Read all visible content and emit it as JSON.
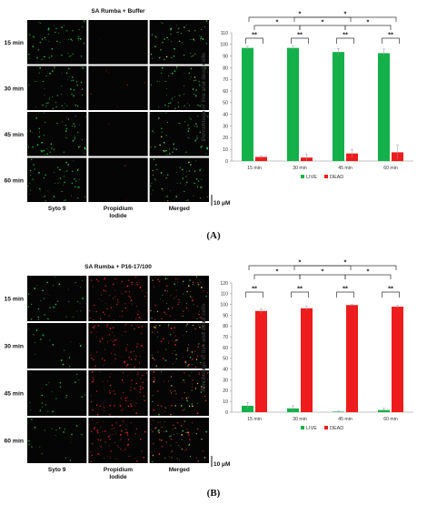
{
  "panels": [
    {
      "letter": "(A)",
      "micrograph": {
        "title": "SA Rumba + Buffer",
        "rows": [
          "15 min",
          "30 min",
          "45 min",
          "60 min"
        ],
        "columns": [
          "Syto 9",
          "Propidium\nIodide",
          "Merged"
        ],
        "scale_bar": "10 μM"
      }
    },
    {
      "letter": "(B)",
      "micrograph": {
        "title": "SA Rumba + P16-17/100",
        "rows": [
          "15 min",
          "30 min",
          "45 min",
          "60 min"
        ],
        "columns": [
          "Syto 9",
          "Propidium\nIodide",
          "Merged"
        ],
        "scale_bar": "10 μM"
      }
    }
  ],
  "colors": {
    "live": "#14b04a",
    "dead": "#ee1c1c",
    "bracket": "#333333"
  },
  "chart_data": [
    {
      "type": "bar",
      "title": "",
      "xlabel": "",
      "ylabel": "Percentage of live and dead cells",
      "categories": [
        "15 min",
        "30 min",
        "45 min",
        "60 min"
      ],
      "series": [
        {
          "name": "LIVE",
          "values": [
            97,
            97,
            93.5,
            92.5
          ],
          "errors": [
            1.5,
            2,
            3,
            3.5
          ]
        },
        {
          "name": "DEAD",
          "values": [
            3.5,
            3,
            6.5,
            7.5
          ],
          "errors": [
            1,
            3,
            3.5,
            6
          ]
        }
      ],
      "ylim": [
        0,
        110
      ],
      "yticks": [
        0,
        10,
        20,
        30,
        40,
        50,
        60,
        70,
        80,
        90,
        100,
        110
      ],
      "grid": false,
      "legend": "bottom",
      "significance": [
        {
          "from": 0,
          "to": 1,
          "label": "*",
          "level": 1
        },
        {
          "from": 1,
          "to": 2,
          "label": "*",
          "level": 1
        },
        {
          "from": 2,
          "to": 3,
          "label": "*",
          "level": 1
        },
        {
          "from": 0,
          "to": 2,
          "label": "*",
          "level": 2
        },
        {
          "from": 1,
          "to": 3,
          "label": "*",
          "level": 2
        }
      ],
      "pair_significance": [
        "**",
        "**",
        "**",
        "**"
      ]
    },
    {
      "type": "bar",
      "title": "",
      "xlabel": "",
      "ylabel": "Percentage of live and dead cells",
      "categories": [
        "15 min",
        "30 min",
        "45 min",
        "60 min"
      ],
      "series": [
        {
          "name": "LIVE",
          "values": [
            6,
            3.5,
            0.5,
            2
          ],
          "errors": [
            3,
            2.5,
            0.5,
            1.5
          ]
        },
        {
          "name": "DEAD",
          "values": [
            94,
            96.5,
            99.5,
            98
          ],
          "errors": [
            2,
            2,
            0.5,
            1.5
          ]
        }
      ],
      "ylim": [
        0,
        120
      ],
      "yticks": [
        0,
        10,
        20,
        30,
        40,
        50,
        60,
        70,
        80,
        90,
        100,
        110,
        120
      ],
      "grid": false,
      "legend": "bottom",
      "significance": [
        {
          "from": 0,
          "to": 1,
          "label": "*",
          "level": 1
        },
        {
          "from": 1,
          "to": 2,
          "label": "*",
          "level": 1
        },
        {
          "from": 2,
          "to": 3,
          "label": "*",
          "level": 1
        },
        {
          "from": 0,
          "to": 2,
          "label": "*",
          "level": 2
        },
        {
          "from": 1,
          "to": 3,
          "label": "*",
          "level": 2
        }
      ],
      "pair_significance": [
        "**",
        "**",
        "**",
        "**"
      ]
    }
  ]
}
